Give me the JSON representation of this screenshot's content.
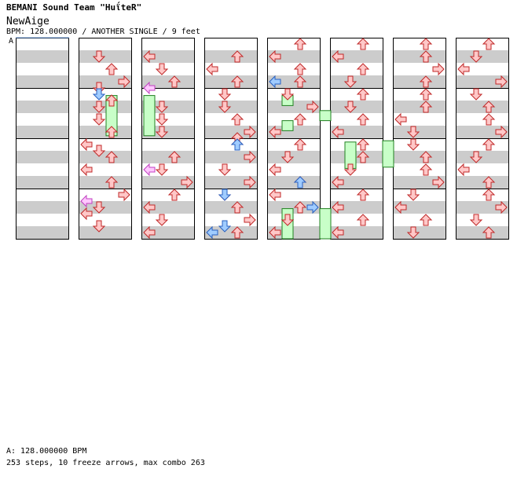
{
  "header": {
    "artist": "BEMANI Sound Team \"HuΐteR\"",
    "title": "NewAige",
    "info": "BPM: 128.000000 / ANOTHER SINGLE / 9 feet",
    "bpm_marker": "A"
  },
  "footer": {
    "bpm_legend": "A: 128.000000 BPM",
    "stats": "253 steps, 10 freeze arrows, max combo 263"
  },
  "colors": {
    "red_arrow": "#ffc8c8",
    "red_stroke": "#c02828",
    "blue_arrow": "#a0ccff",
    "blue_stroke": "#2860c0",
    "pink_arrow": "#ffc8ff",
    "pink_stroke": "#c040c0",
    "freeze_fill": "#c8ffc8",
    "freeze_stroke": "#208020",
    "stripe": "#cccccc"
  },
  "chart": {
    "columns": 8,
    "rows_per_column": 16,
    "notes": [
      {
        "c": 1,
        "r": 2,
        "d": "D"
      },
      {
        "c": 1,
        "r": 3,
        "d": "U"
      },
      {
        "c": 1,
        "r": 4,
        "d": "R"
      },
      {
        "c": 1,
        "r": 4.5,
        "d": "D"
      },
      {
        "c": 1,
        "r": 5.5,
        "d": "U"
      },
      {
        "c": 1,
        "r": 6,
        "d": "D"
      },
      {
        "c": 1,
        "r": 7,
        "d": "D"
      },
      {
        "c": 1,
        "r": 8,
        "d": "U"
      },
      {
        "c": 1,
        "r": 9,
        "d": "L"
      },
      {
        "c": 1,
        "r": 9.5,
        "d": "D"
      },
      {
        "c": 1,
        "r": 10,
        "d": "U"
      },
      {
        "c": 1,
        "r": 11,
        "d": "L"
      },
      {
        "c": 1,
        "r": 12,
        "d": "U"
      },
      {
        "c": 1,
        "r": 13,
        "d": "R"
      },
      {
        "c": 1,
        "r": 14,
        "d": "D"
      },
      {
        "c": 1,
        "r": 14.5,
        "d": "L"
      },
      {
        "c": 1,
        "r": 15.5,
        "d": "D"
      },
      {
        "c": 2,
        "r": 2,
        "d": "L"
      },
      {
        "c": 2,
        "r": 3,
        "d": "D"
      },
      {
        "c": 2,
        "r": 4,
        "d": "U"
      },
      {
        "c": 2,
        "r": 6,
        "d": "D"
      },
      {
        "c": 2,
        "r": 7,
        "d": "D"
      },
      {
        "c": 2,
        "r": 8,
        "d": "D"
      },
      {
        "c": 2,
        "r": 10,
        "d": "U"
      },
      {
        "c": 2,
        "r": 11,
        "d": "D"
      },
      {
        "c": 2,
        "r": 12,
        "d": "R"
      },
      {
        "c": 2,
        "r": 13,
        "d": "U"
      },
      {
        "c": 2,
        "r": 14,
        "d": "L"
      },
      {
        "c": 2,
        "r": 15,
        "d": "D"
      },
      {
        "c": 2,
        "r": 16,
        "d": "L"
      },
      {
        "c": 3,
        "r": 2,
        "d": "U"
      },
      {
        "c": 3,
        "r": 3,
        "d": "L"
      },
      {
        "c": 3,
        "r": 4,
        "d": "U"
      },
      {
        "c": 3,
        "r": 5,
        "d": "D"
      },
      {
        "c": 3,
        "r": 6,
        "d": "D"
      },
      {
        "c": 3,
        "r": 7,
        "d": "U"
      },
      {
        "c": 3,
        "r": 8,
        "d": "R"
      },
      {
        "c": 3,
        "r": 8.5,
        "d": "U"
      },
      {
        "c": 3,
        "r": 9,
        "d": "U"
      },
      {
        "c": 3,
        "r": 10,
        "d": "R"
      },
      {
        "c": 3,
        "r": 11,
        "d": "D"
      },
      {
        "c": 3,
        "r": 12,
        "d": "R"
      },
      {
        "c": 3,
        "r": 13,
        "d": "D"
      },
      {
        "c": 3,
        "r": 14,
        "d": "U"
      },
      {
        "c": 3,
        "r": 15,
        "d": "R"
      },
      {
        "c": 3,
        "r": 16,
        "d": "U"
      },
      {
        "c": 4,
        "r": 1,
        "d": "U"
      },
      {
        "c": 4,
        "r": 2,
        "d": "L"
      },
      {
        "c": 4,
        "r": 3,
        "d": "U"
      },
      {
        "c": 4,
        "r": 4,
        "d": "U"
      },
      {
        "c": 4,
        "r": 5,
        "d": "D"
      },
      {
        "c": 4,
        "r": 6,
        "d": "R"
      },
      {
        "c": 4,
        "r": 7,
        "d": "U"
      },
      {
        "c": 4,
        "r": 8,
        "d": "L"
      },
      {
        "c": 4,
        "r": 9,
        "d": "U"
      },
      {
        "c": 4,
        "r": 10,
        "d": "D"
      },
      {
        "c": 4,
        "r": 11,
        "d": "L"
      },
      {
        "c": 4,
        "r": 12,
        "d": "U"
      },
      {
        "c": 4,
        "r": 13,
        "d": "L"
      },
      {
        "c": 4,
        "r": 14,
        "d": "U"
      },
      {
        "c": 4,
        "r": 15,
        "d": "D"
      },
      {
        "c": 4,
        "r": 16,
        "d": "L"
      },
      {
        "c": 5,
        "r": 1,
        "d": "U"
      },
      {
        "c": 5,
        "r": 2,
        "d": "L"
      },
      {
        "c": 5,
        "r": 3,
        "d": "U"
      },
      {
        "c": 5,
        "r": 4,
        "d": "D"
      },
      {
        "c": 5,
        "r": 5,
        "d": "U"
      },
      {
        "c": 5,
        "r": 6,
        "d": "D"
      },
      {
        "c": 5,
        "r": 7,
        "d": "U"
      },
      {
        "c": 5,
        "r": 8,
        "d": "L"
      },
      {
        "c": 5,
        "r": 9,
        "d": "U"
      },
      {
        "c": 5,
        "r": 10,
        "d": "U"
      },
      {
        "c": 5,
        "r": 11,
        "d": "D"
      },
      {
        "c": 5,
        "r": 12,
        "d": "L"
      },
      {
        "c": 5,
        "r": 13,
        "d": "U"
      },
      {
        "c": 5,
        "r": 14,
        "d": "L"
      },
      {
        "c": 5,
        "r": 15,
        "d": "U"
      },
      {
        "c": 5,
        "r": 16,
        "d": "L"
      },
      {
        "c": 6,
        "r": 1,
        "d": "U"
      },
      {
        "c": 6,
        "r": 2,
        "d": "U"
      },
      {
        "c": 6,
        "r": 3,
        "d": "R"
      },
      {
        "c": 6,
        "r": 4,
        "d": "U"
      },
      {
        "c": 6,
        "r": 5,
        "d": "U"
      },
      {
        "c": 6,
        "r": 6,
        "d": "U"
      },
      {
        "c": 6,
        "r": 7,
        "d": "L"
      },
      {
        "c": 6,
        "r": 8,
        "d": "D"
      },
      {
        "c": 6,
        "r": 9,
        "d": "D"
      },
      {
        "c": 6,
        "r": 10,
        "d": "U"
      },
      {
        "c": 6,
        "r": 11,
        "d": "U"
      },
      {
        "c": 6,
        "r": 12,
        "d": "R"
      },
      {
        "c": 6,
        "r": 13,
        "d": "D"
      },
      {
        "c": 6,
        "r": 14,
        "d": "L"
      },
      {
        "c": 6,
        "r": 15,
        "d": "U"
      },
      {
        "c": 6,
        "r": 16,
        "d": "D"
      },
      {
        "c": 7,
        "r": 1,
        "d": "U"
      },
      {
        "c": 7,
        "r": 2,
        "d": "D"
      },
      {
        "c": 7,
        "r": 3,
        "d": "L"
      },
      {
        "c": 7,
        "r": 4,
        "d": "R"
      },
      {
        "c": 7,
        "r": 5,
        "d": "D"
      },
      {
        "c": 7,
        "r": 6,
        "d": "U"
      },
      {
        "c": 7,
        "r": 7,
        "d": "U"
      },
      {
        "c": 7,
        "r": 8,
        "d": "R"
      },
      {
        "c": 7,
        "r": 9,
        "d": "U"
      },
      {
        "c": 7,
        "r": 10,
        "d": "D"
      },
      {
        "c": 7,
        "r": 11,
        "d": "L"
      },
      {
        "c": 7,
        "r": 12,
        "d": "U"
      },
      {
        "c": 7,
        "r": 13,
        "d": "U"
      },
      {
        "c": 7,
        "r": 14,
        "d": "R"
      },
      {
        "c": 7,
        "r": 15,
        "d": "D"
      },
      {
        "c": 7,
        "r": 16,
        "d": "U"
      }
    ],
    "blue_notes": [
      {
        "c": 1,
        "r": 5,
        "d": "D"
      },
      {
        "c": 3,
        "r": 9,
        "d": "U"
      },
      {
        "c": 3,
        "r": 13,
        "d": "D"
      },
      {
        "c": 3,
        "r": 15.5,
        "d": "D"
      },
      {
        "c": 3,
        "r": 16,
        "d": "L"
      },
      {
        "c": 4,
        "r": 4,
        "d": "L"
      },
      {
        "c": 4,
        "r": 12,
        "d": "U"
      },
      {
        "c": 4,
        "r": 14,
        "d": "R"
      }
    ],
    "pink_notes": [
      {
        "c": 2,
        "r": 4.5,
        "d": "L"
      },
      {
        "c": 2,
        "r": 11,
        "d": "L"
      },
      {
        "c": 1,
        "r": 13.5,
        "d": "L"
      }
    ],
    "freezes": [
      {
        "c": 1,
        "x": 2,
        "r1": 4.6,
        "r2": 7.8
      },
      {
        "c": 1,
        "x": 5,
        "r1": 4.6,
        "r2": 7.8
      },
      {
        "c": 4,
        "x": 1,
        "r1": 4.6,
        "r2": 5.4
      },
      {
        "c": 4,
        "x": 4,
        "r1": 5.8,
        "r2": 6.6
      },
      {
        "c": 4,
        "x": 1,
        "r1": 6.6,
        "r2": 7.4
      },
      {
        "c": 5,
        "x": 1,
        "r1": 8.3,
        "r2": 10.4
      },
      {
        "c": 5,
        "x": 4,
        "r1": 8.2,
        "r2": 10.3
      },
      {
        "c": 4,
        "x": 1,
        "r1": 13.6,
        "r2": 16
      },
      {
        "c": 4,
        "x": 4,
        "r1": 13.6,
        "r2": 16
      }
    ]
  }
}
